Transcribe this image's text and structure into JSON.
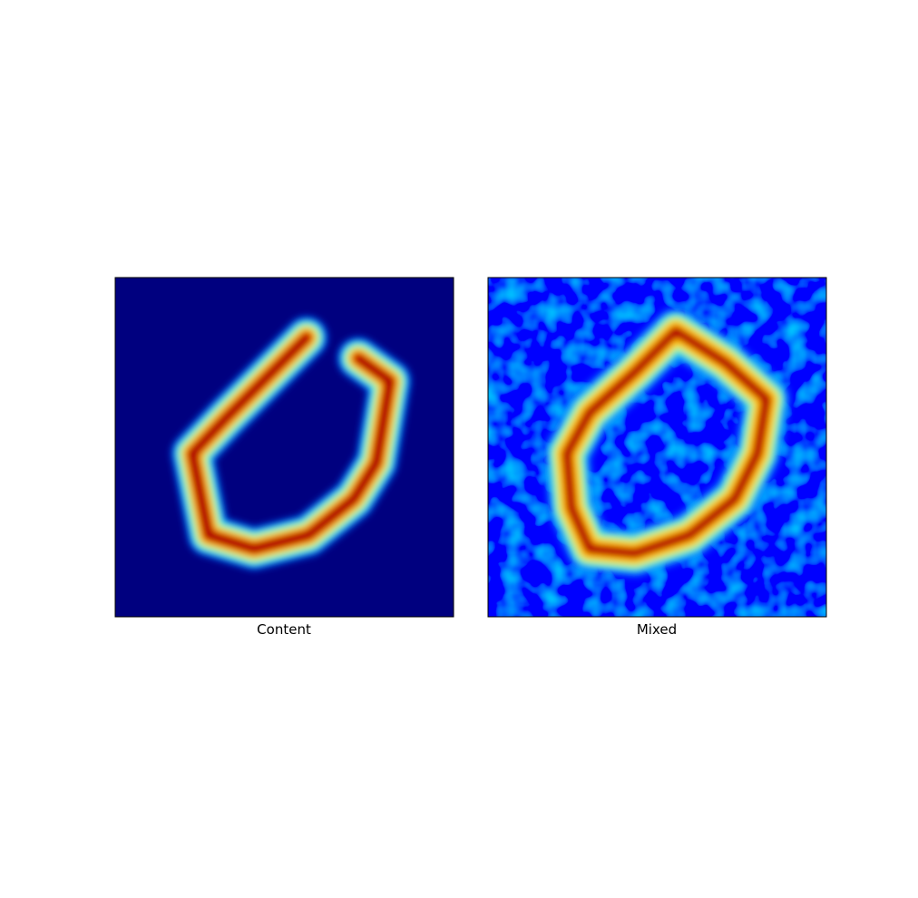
{
  "panels": [
    {
      "label": "Content"
    },
    {
      "label": "Mixed"
    }
  ]
}
